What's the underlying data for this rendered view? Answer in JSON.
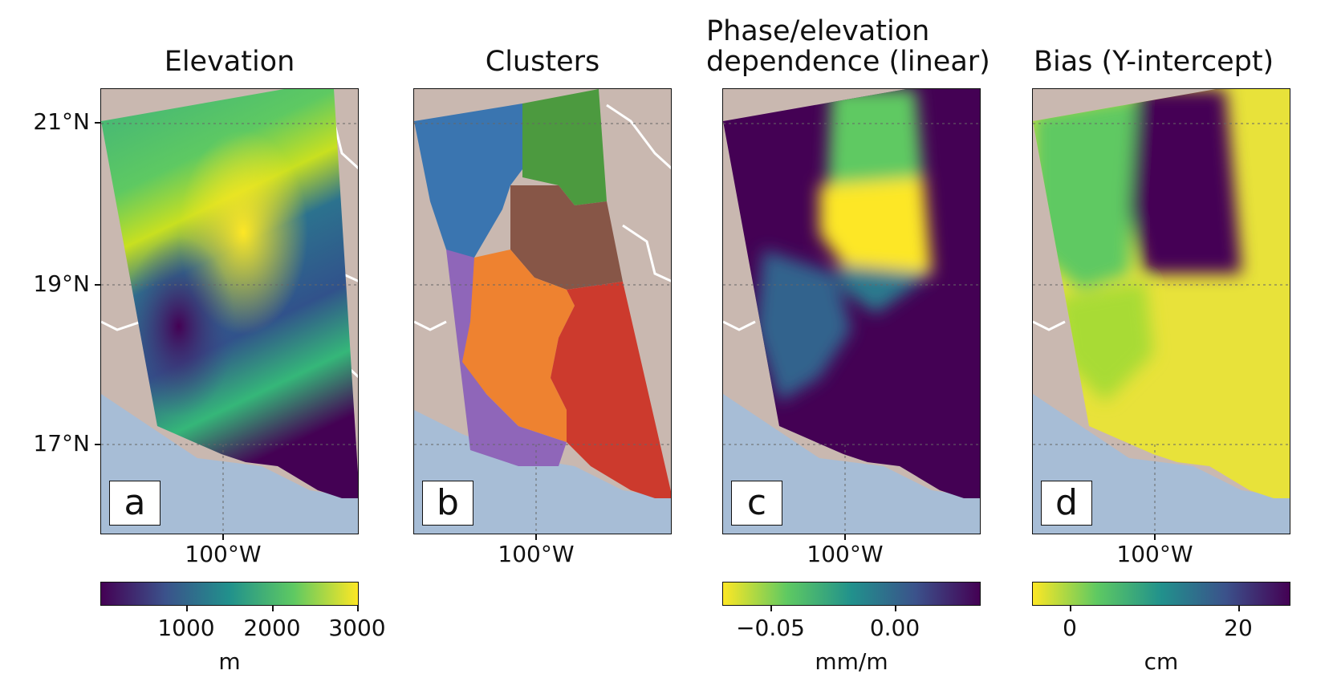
{
  "panels": [
    {
      "title_lines": [
        "Elevation"
      ],
      "letter": "a",
      "xtick": "100°W"
    },
    {
      "title_lines": [
        "Clusters"
      ],
      "letter": "b",
      "xtick": "100°W"
    },
    {
      "title_lines": [
        "Phase/elevation",
        "dependence (linear)"
      ],
      "letter": "c",
      "xtick": "100°W"
    },
    {
      "title_lines": [
        "Bias (Y-intercept)"
      ],
      "letter": "d",
      "xtick": "100°W"
    }
  ],
  "yticks": [
    "21°N",
    "19°N",
    "17°N"
  ],
  "colorbars": [
    {
      "ticks": [
        "1000",
        "2000",
        "3000"
      ],
      "unit": "m"
    },
    {
      "ticks": [
        "−0.05",
        "0.00"
      ],
      "unit": "mm/m"
    },
    {
      "ticks": [
        "0",
        "20"
      ],
      "unit": "cm"
    }
  ],
  "colors": {
    "ocean": "#a7bdd6",
    "land": "#c9b8b0",
    "border": "#ffffff",
    "viridis_dark": "#440154",
    "viridis_mid": "#21918c",
    "viridis_light": "#fde725",
    "clusters": [
      "#3a75b0",
      "#4c9a3f",
      "#875647",
      "#8f66b9",
      "#ee8230",
      "#cc3a2d"
    ]
  }
}
